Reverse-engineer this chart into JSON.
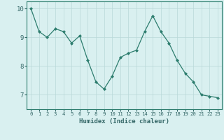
{
  "xlabel": "Humidex (Indice chaleur)",
  "ylabel": "",
  "x": [
    0,
    1,
    2,
    3,
    4,
    5,
    6,
    7,
    8,
    9,
    10,
    11,
    12,
    13,
    14,
    15,
    16,
    17,
    18,
    19,
    20,
    21,
    22,
    23
  ],
  "y": [
    10.0,
    9.2,
    9.0,
    9.3,
    9.2,
    8.8,
    9.05,
    8.2,
    7.45,
    7.2,
    7.65,
    8.3,
    8.45,
    8.55,
    9.2,
    9.75,
    9.2,
    8.8,
    8.2,
    7.75,
    7.45,
    7.0,
    6.95,
    6.9
  ],
  "line_color": "#2d7d6e",
  "marker": "D",
  "marker_size": 2,
  "bg_color": "#d9f0f0",
  "grid_color": "#b8d8d8",
  "axis_color": "#2d7d6e",
  "tick_color": "#336666",
  "ylim": [
    6.5,
    10.25
  ],
  "xlim": [
    -0.5,
    23.5
  ],
  "yticks": [
    7,
    8,
    9,
    10
  ],
  "xticks": [
    0,
    1,
    2,
    3,
    4,
    5,
    6,
    7,
    8,
    9,
    10,
    11,
    12,
    13,
    14,
    15,
    16,
    17,
    18,
    19,
    20,
    21,
    22,
    23
  ],
  "xlabel_fontsize": 6.5,
  "ytick_fontsize": 6.5,
  "xtick_fontsize": 5.2
}
